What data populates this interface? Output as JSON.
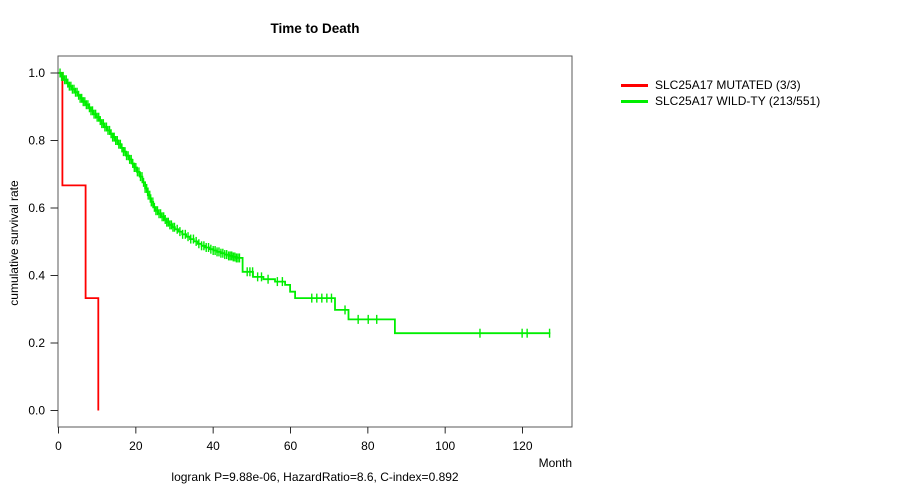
{
  "chart_data": {
    "type": "line",
    "variant": "kaplan_meier_step",
    "title": "Time to Death",
    "xlabel": "Month",
    "ylabel": "cumulative survival rate",
    "footnote": "logrank P=9.88e-06, HazardRatio=8.6, C-index=0.892",
    "x_ticks": [
      0,
      20,
      40,
      60,
      80,
      100,
      120
    ],
    "y_ticks": [
      "0.0",
      "0.2",
      "0.4",
      "0.6",
      "0.8",
      "1.0"
    ],
    "xlim": [
      0,
      132.8
    ],
    "ylim": [
      0,
      1
    ],
    "grid": false,
    "legend_position": "right-outside",
    "series": [
      {
        "name": "SLC25A17 MUTATED (3/3)",
        "color": "#ff0000",
        "step_points": [
          [
            0,
            1.0
          ],
          [
            1,
            0.667
          ],
          [
            7,
            0.333
          ],
          [
            10.3,
            0.0
          ]
        ],
        "censor_marks": []
      },
      {
        "name": "SLC25A17 WILD-TY (213/551)",
        "color": "#00ee00",
        "step_points": [
          [
            0,
            1.0
          ],
          [
            0.7,
            0.99
          ],
          [
            1.4,
            0.98
          ],
          [
            2.1,
            0.97
          ],
          [
            2.8,
            0.961
          ],
          [
            3.5,
            0.952
          ],
          [
            4.2,
            0.943
          ],
          [
            4.9,
            0.934
          ],
          [
            5.6,
            0.925
          ],
          [
            6.3,
            0.915
          ],
          [
            7.0,
            0.906
          ],
          [
            7.7,
            0.897
          ],
          [
            8.4,
            0.888
          ],
          [
            9.1,
            0.878
          ],
          [
            9.8,
            0.869
          ],
          [
            10.5,
            0.859
          ],
          [
            11.2,
            0.85
          ],
          [
            11.9,
            0.84
          ],
          [
            12.6,
            0.83
          ],
          [
            13.3,
            0.82
          ],
          [
            14.0,
            0.81
          ],
          [
            14.7,
            0.8
          ],
          [
            15.4,
            0.789
          ],
          [
            16.1,
            0.778
          ],
          [
            16.8,
            0.767
          ],
          [
            17.5,
            0.755
          ],
          [
            18.2,
            0.744
          ],
          [
            18.9,
            0.732
          ],
          [
            19.6,
            0.72
          ],
          [
            20.3,
            0.707
          ],
          [
            21.0,
            0.693
          ],
          [
            21.7,
            0.676
          ],
          [
            22.4,
            0.658
          ],
          [
            23.1,
            0.638
          ],
          [
            23.8,
            0.618
          ],
          [
            24.5,
            0.602
          ],
          [
            25.2,
            0.592
          ],
          [
            25.9,
            0.583
          ],
          [
            26.6,
            0.574
          ],
          [
            27.3,
            0.566
          ],
          [
            28.0,
            0.558
          ],
          [
            28.7,
            0.55
          ],
          [
            29.4,
            0.543
          ],
          [
            30.1,
            0.537
          ],
          [
            31,
            0.53
          ],
          [
            32,
            0.522
          ],
          [
            33,
            0.515
          ],
          [
            34,
            0.508
          ],
          [
            35,
            0.501
          ],
          [
            36,
            0.494
          ],
          [
            37,
            0.488
          ],
          [
            38,
            0.483
          ],
          [
            39,
            0.478
          ],
          [
            40,
            0.474
          ],
          [
            41,
            0.47
          ],
          [
            42,
            0.466
          ],
          [
            43,
            0.462
          ],
          [
            44,
            0.458
          ],
          [
            45,
            0.455
          ],
          [
            46,
            0.452
          ],
          [
            47.6,
            0.411
          ],
          [
            50.3,
            0.396
          ],
          [
            53,
            0.389
          ],
          [
            56,
            0.382
          ],
          [
            58.6,
            0.372
          ],
          [
            59.9,
            0.352
          ],
          [
            61.2,
            0.333
          ],
          [
            71.5,
            0.298
          ],
          [
            75,
            0.27
          ],
          [
            87,
            0.229
          ],
          [
            127.2,
            0.229
          ]
        ],
        "censor_marks": [
          0.4,
          0.8,
          1.2,
          1.6,
          2,
          2.4,
          2.8,
          3.2,
          3.6,
          4,
          4.4,
          4.8,
          5.2,
          5.6,
          6,
          6.4,
          6.8,
          7.2,
          7.6,
          8,
          8.4,
          8.8,
          9.2,
          9.6,
          10,
          10.4,
          10.8,
          11.2,
          11.6,
          12,
          12.4,
          12.8,
          13.2,
          13.6,
          14,
          14.4,
          14.8,
          15.2,
          15.6,
          16,
          16.4,
          16.8,
          17.2,
          17.6,
          18,
          18.4,
          18.8,
          19.2,
          19.6,
          20,
          20.4,
          20.8,
          21.2,
          21.6,
          22,
          22.4,
          22.8,
          23.2,
          23.6,
          24,
          24.4,
          24.8,
          25.2,
          25.6,
          26,
          26.4,
          26.8,
          27.2,
          27.6,
          28,
          28.4,
          28.8,
          29.2,
          29.6,
          30,
          30.7,
          31.4,
          32.1,
          32.8,
          33.5,
          34.2,
          34.9,
          35.6,
          36.3,
          37,
          37.6,
          38.2,
          38.8,
          39.4,
          40,
          40.5,
          41,
          41.5,
          42,
          42.5,
          43,
          43.5,
          44,
          44.4,
          44.8,
          45.2,
          45.6,
          46,
          46.4,
          46.8,
          48.8,
          49.5,
          50.2,
          51.5,
          52.5,
          54.2,
          56.6,
          57.9,
          65.5,
          66.8,
          68.1,
          69.4,
          70.6,
          74.1,
          77.5,
          80.1,
          82.3,
          109,
          119.9,
          121.2,
          127
        ]
      }
    ]
  }
}
